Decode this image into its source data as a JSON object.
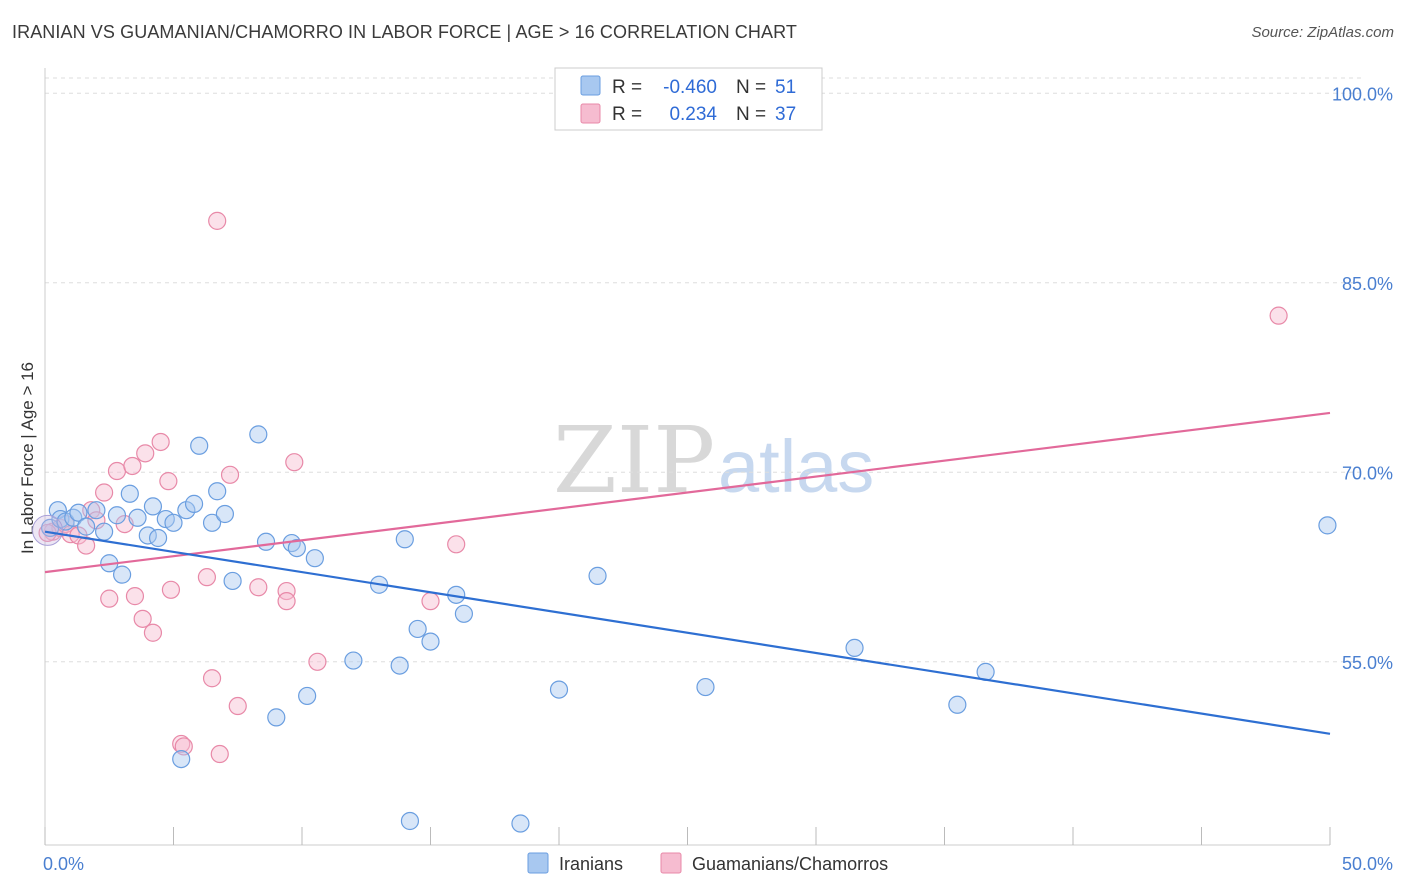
{
  "title": "IRANIAN VS GUAMANIAN/CHAMORRO IN LABOR FORCE | AGE > 16 CORRELATION CHART",
  "source": "Source: ZipAtlas.com",
  "watermark": {
    "zip": "ZIP",
    "atlas": "atlas"
  },
  "chart_data": {
    "type": "scatter",
    "title": "IRANIAN VS GUAMANIAN/CHAMORRO IN LABOR FORCE | AGE > 16 CORRELATION CHART",
    "xlabel": "",
    "ylabel": "In Labor Force | Age > 16",
    "xlim": [
      0,
      50
    ],
    "ylim": [
      40.5,
      102
    ],
    "x_tick_labels": [
      "0.0%",
      "50.0%"
    ],
    "y_ticks": [
      55,
      70,
      85,
      100
    ],
    "y_tick_labels": [
      "55.0%",
      "70.0%",
      "85.0%",
      "100.0%"
    ],
    "grid": "horizontal dashed",
    "legend": {
      "placement": "top-center",
      "entries": [
        {
          "r_label": "R =",
          "r_value": "-0.460",
          "n_label": "N =",
          "n_value": "51"
        },
        {
          "r_label": "R =",
          "r_value": "0.234",
          "n_label": "N =",
          "n_value": "37"
        }
      ]
    },
    "bottom_legend": [
      "Iranians",
      "Guamanians/Chamorros"
    ],
    "colors": {
      "iranians_fill": "#a8c8f0",
      "iranians_stroke": "#6a9ee0",
      "iranians_line": "#2e6fd2",
      "guam_fill": "#f6bcd0",
      "guam_stroke": "#e889a8",
      "guam_line": "#e2699a"
    },
    "series": [
      {
        "name": "Iranians",
        "trend": {
          "x": [
            0,
            50
          ],
          "y": [
            65.3,
            49.3
          ]
        },
        "points": [
          [
            0.2,
            65.6
          ],
          [
            0.5,
            67.0
          ],
          [
            0.6,
            66.3
          ],
          [
            0.8,
            66.1
          ],
          [
            1.1,
            66.4
          ],
          [
            1.3,
            66.8
          ],
          [
            1.6,
            65.7
          ],
          [
            2.0,
            67.0
          ],
          [
            2.3,
            65.3
          ],
          [
            2.5,
            62.8
          ],
          [
            2.8,
            66.6
          ],
          [
            3.0,
            61.9
          ],
          [
            3.3,
            68.3
          ],
          [
            3.6,
            66.4
          ],
          [
            4.0,
            65.0
          ],
          [
            4.2,
            67.3
          ],
          [
            4.4,
            64.8
          ],
          [
            4.7,
            66.3
          ],
          [
            5.0,
            66.0
          ],
          [
            5.3,
            47.3
          ],
          [
            5.5,
            67.0
          ],
          [
            5.8,
            67.5
          ],
          [
            6.0,
            72.1
          ],
          [
            6.5,
            66.0
          ],
          [
            6.7,
            68.5
          ],
          [
            7.0,
            66.7
          ],
          [
            7.3,
            61.4
          ],
          [
            8.3,
            73.0
          ],
          [
            8.6,
            64.5
          ],
          [
            9.0,
            50.6
          ],
          [
            9.6,
            64.4
          ],
          [
            9.8,
            64.0
          ],
          [
            10.5,
            63.2
          ],
          [
            10.2,
            52.3
          ],
          [
            12.0,
            55.1
          ],
          [
            13.0,
            61.1
          ],
          [
            13.8,
            54.7
          ],
          [
            14.0,
            64.7
          ],
          [
            14.2,
            42.4
          ],
          [
            14.5,
            57.6
          ],
          [
            15.0,
            56.6
          ],
          [
            16.0,
            60.3
          ],
          [
            16.3,
            58.8
          ],
          [
            18.5,
            42.2
          ],
          [
            20.0,
            52.8
          ],
          [
            21.5,
            61.8
          ],
          [
            25.7,
            53.0
          ],
          [
            31.5,
            56.1
          ],
          [
            35.5,
            51.6
          ],
          [
            36.6,
            54.2
          ],
          [
            49.9,
            65.8
          ]
        ]
      },
      {
        "name": "Guamanians/Chamorros",
        "trend": {
          "x": [
            0,
            50
          ],
          "y": [
            62.1,
            74.7
          ]
        },
        "points": [
          [
            0.3,
            65.3
          ],
          [
            0.6,
            65.6
          ],
          [
            0.8,
            65.9
          ],
          [
            1.0,
            65.1
          ],
          [
            1.3,
            65.0
          ],
          [
            1.6,
            64.2
          ],
          [
            1.8,
            67.0
          ],
          [
            2.0,
            66.2
          ],
          [
            2.3,
            68.4
          ],
          [
            2.5,
            60.0
          ],
          [
            2.8,
            70.1
          ],
          [
            3.1,
            65.9
          ],
          [
            3.4,
            70.5
          ],
          [
            3.5,
            60.2
          ],
          [
            3.8,
            58.4
          ],
          [
            3.9,
            71.5
          ],
          [
            4.2,
            57.3
          ],
          [
            4.5,
            72.4
          ],
          [
            4.8,
            69.3
          ],
          [
            4.9,
            60.7
          ],
          [
            5.3,
            48.5
          ],
          [
            5.4,
            48.3
          ],
          [
            6.3,
            61.7
          ],
          [
            6.5,
            53.7
          ],
          [
            6.7,
            89.9
          ],
          [
            6.8,
            47.7
          ],
          [
            7.2,
            69.8
          ],
          [
            7.5,
            51.5
          ],
          [
            8.3,
            60.9
          ],
          [
            9.4,
            60.6
          ],
          [
            9.4,
            59.8
          ],
          [
            9.7,
            70.8
          ],
          [
            10.6,
            55.0
          ],
          [
            15.0,
            59.8
          ],
          [
            16.0,
            64.3
          ],
          [
            48.0,
            82.4
          ],
          [
            0.1,
            65.2
          ]
        ]
      }
    ]
  }
}
